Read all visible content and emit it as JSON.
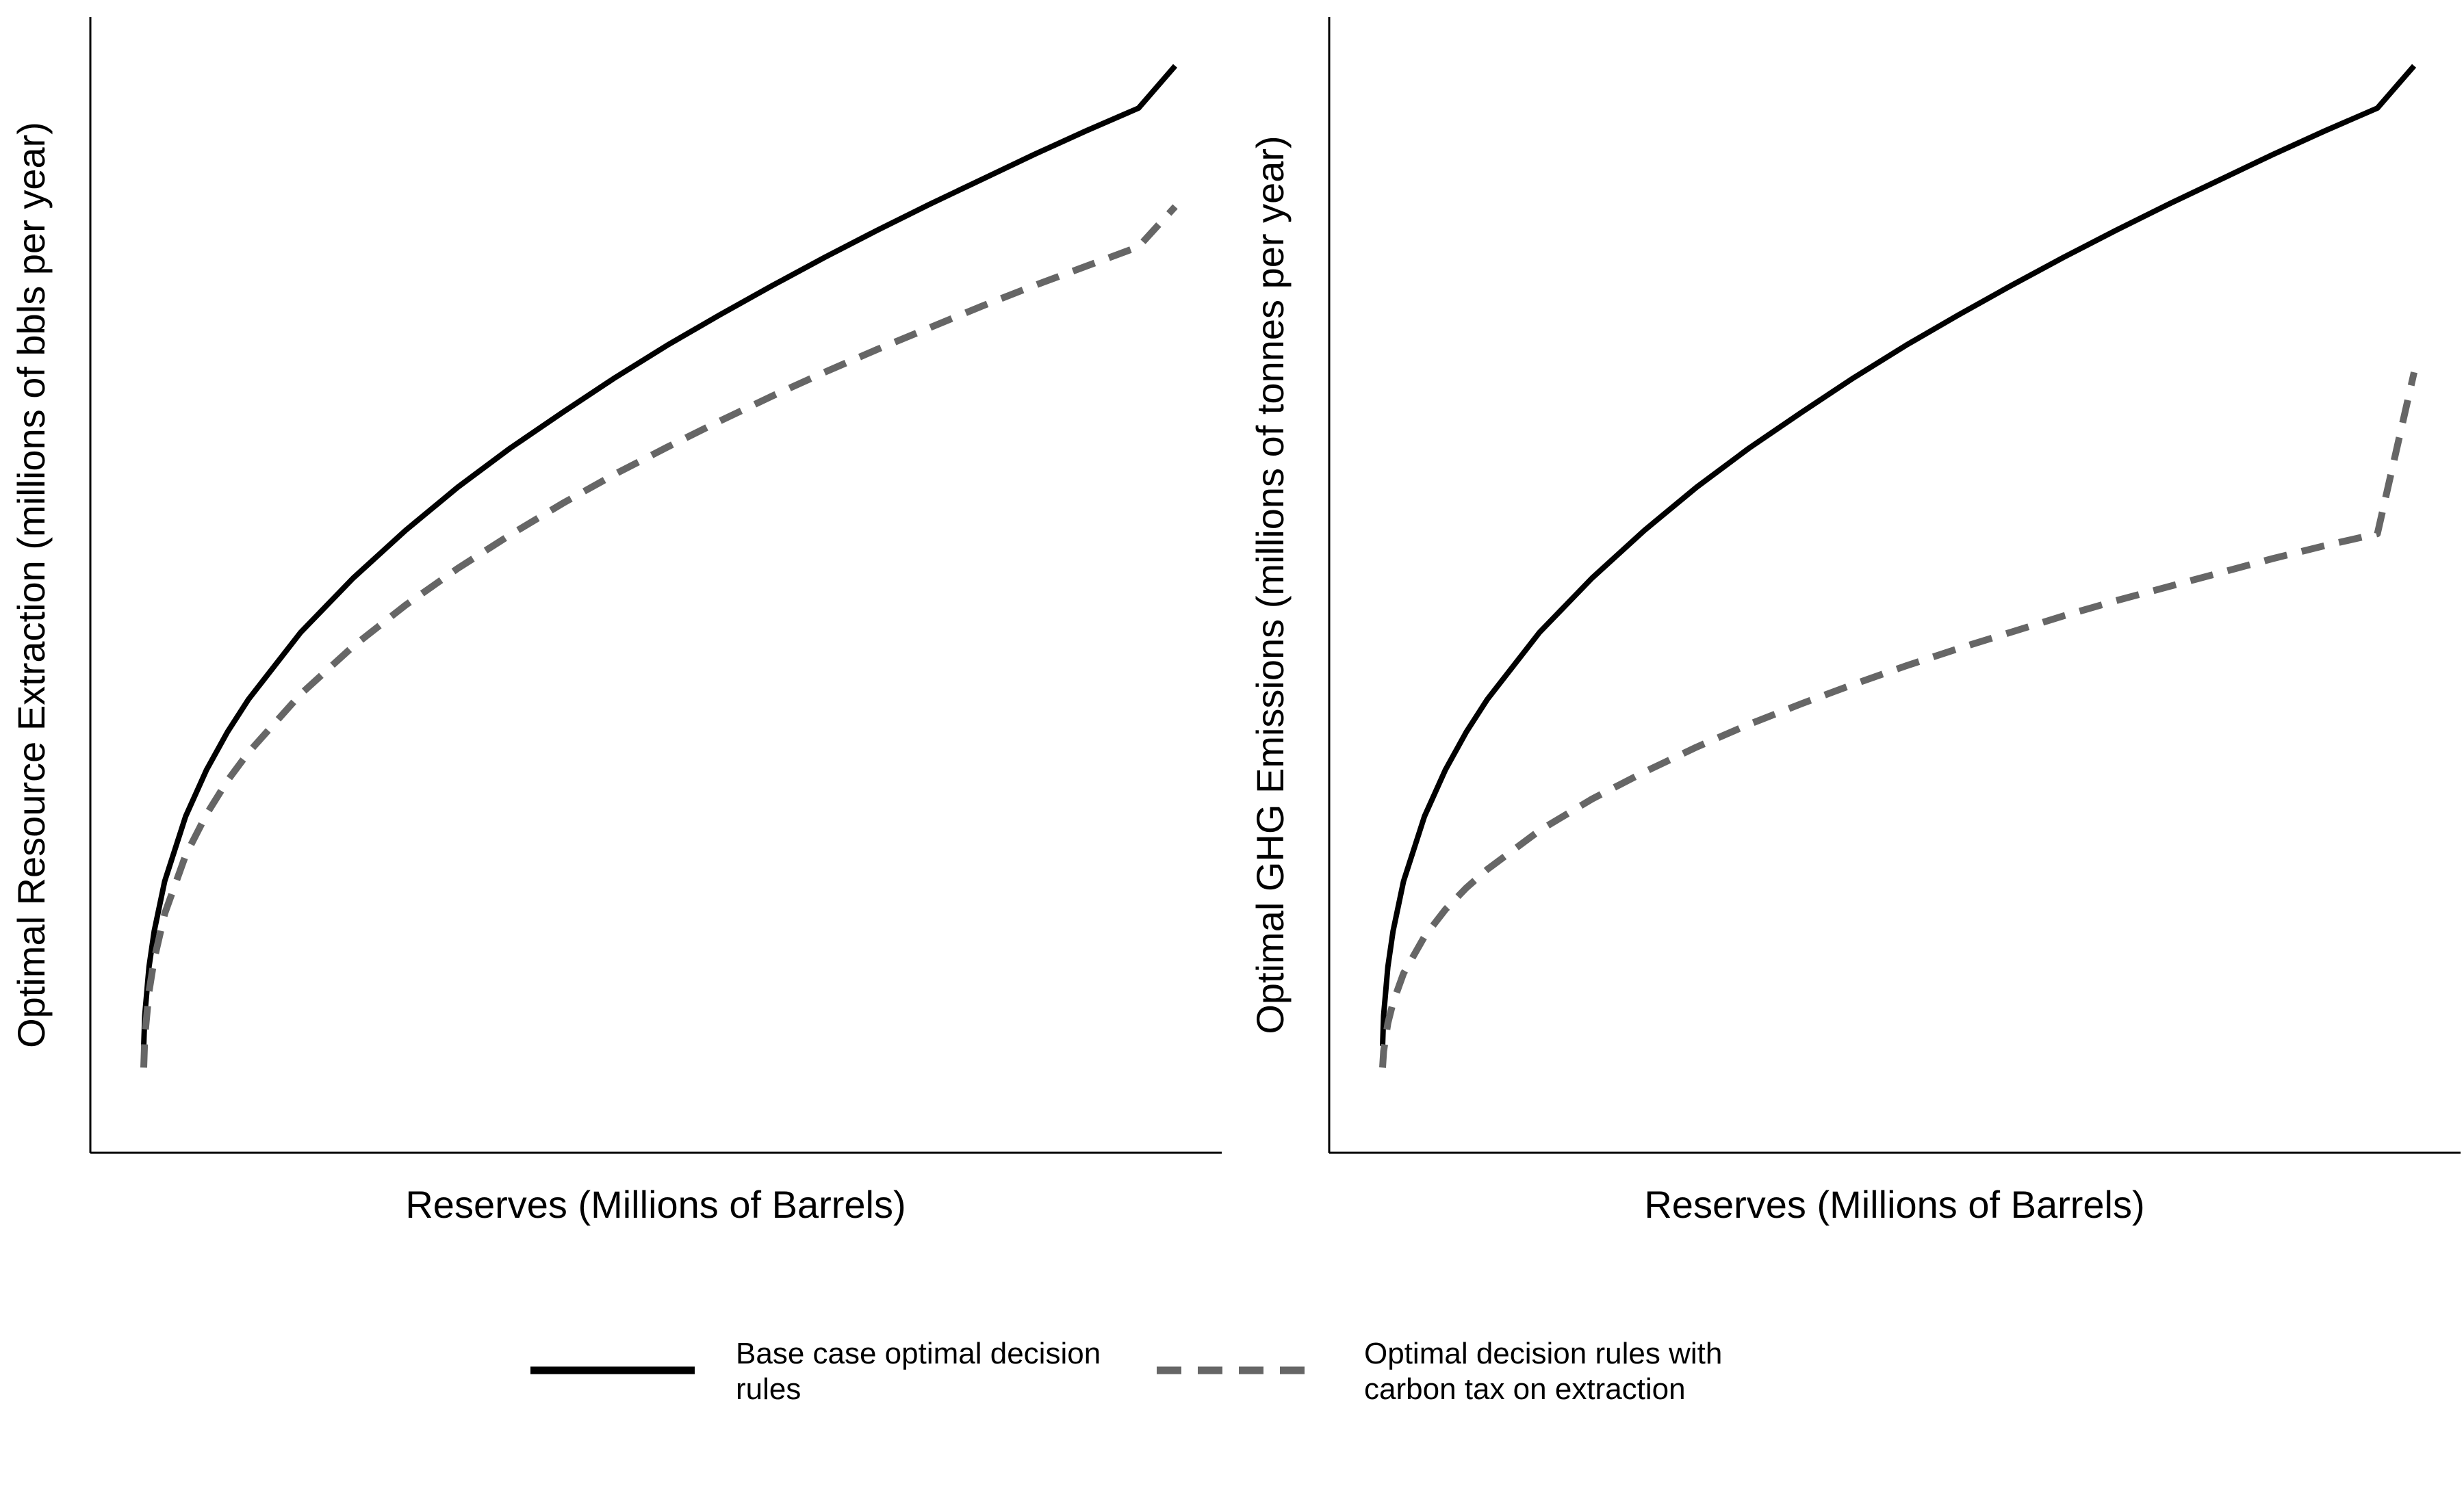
{
  "chart_data": [
    {
      "type": "line",
      "title": "",
      "xlabel": "Reserves (Millions of Barrels)",
      "ylabel": "Optimal Resource Extraction (millions of bbls per year)",
      "x_ticks": "none",
      "y_ticks": "none",
      "xlim": [
        0,
        1
      ],
      "ylim": [
        0,
        1
      ],
      "grid": false,
      "x": [
        0,
        0.001,
        0.005,
        0.01,
        0.02,
        0.04,
        0.06,
        0.08,
        0.1,
        0.15,
        0.2,
        0.25,
        0.3,
        0.35,
        0.4,
        0.45,
        0.5,
        0.55,
        0.6,
        0.65,
        0.7,
        0.75,
        0.8,
        0.85,
        0.9,
        0.95,
        0.985
      ],
      "series": [
        {
          "name": "Base case optimal decision rules",
          "color": "#000000",
          "style": "solid",
          "values": [
            0.05,
            0.078,
            0.123,
            0.156,
            0.202,
            0.262,
            0.305,
            0.34,
            0.37,
            0.432,
            0.482,
            0.526,
            0.566,
            0.602,
            0.635,
            0.667,
            0.697,
            0.725,
            0.752,
            0.778,
            0.803,
            0.827,
            0.85,
            0.873,
            0.895,
            0.916,
            0.955
          ]
        },
        {
          "name": "Optimal decision rules with carbon tax on extraction",
          "color": "#666666",
          "style": "dashed",
          "values": [
            0.03,
            0.058,
            0.1,
            0.13,
            0.172,
            0.226,
            0.264,
            0.295,
            0.321,
            0.375,
            0.419,
            0.457,
            0.491,
            0.522,
            0.551,
            0.578,
            0.603,
            0.627,
            0.65,
            0.672,
            0.693,
            0.713,
            0.733,
            0.752,
            0.77,
            0.788,
            0.825
          ]
        }
      ]
    },
    {
      "type": "line",
      "title": "",
      "xlabel": "Reserves (Millions of Barrels)",
      "ylabel": "Optimal GHG Emissions (millions of tonnes per year)",
      "x_ticks": "none",
      "y_ticks": "none",
      "xlim": [
        0,
        1
      ],
      "ylim": [
        0,
        1
      ],
      "grid": false,
      "x": [
        0,
        0.001,
        0.005,
        0.01,
        0.02,
        0.04,
        0.06,
        0.08,
        0.1,
        0.15,
        0.2,
        0.25,
        0.3,
        0.35,
        0.4,
        0.45,
        0.5,
        0.55,
        0.6,
        0.65,
        0.7,
        0.75,
        0.8,
        0.85,
        0.9,
        0.95,
        0.985
      ],
      "series": [
        {
          "name": "Base case optimal decision rules",
          "color": "#000000",
          "style": "solid",
          "values": [
            0.05,
            0.078,
            0.123,
            0.156,
            0.202,
            0.262,
            0.305,
            0.34,
            0.37,
            0.432,
            0.482,
            0.526,
            0.566,
            0.602,
            0.635,
            0.667,
            0.697,
            0.725,
            0.752,
            0.778,
            0.803,
            0.827,
            0.85,
            0.873,
            0.895,
            0.916,
            0.955
          ]
        },
        {
          "name": "Optimal decision rules with carbon tax on extraction",
          "color": "#666666",
          "style": "dashed",
          "values": [
            0.03,
            0.045,
            0.071,
            0.09,
            0.117,
            0.151,
            0.176,
            0.196,
            0.213,
            0.249,
            0.278,
            0.303,
            0.326,
            0.347,
            0.366,
            0.384,
            0.401,
            0.417,
            0.432,
            0.447,
            0.461,
            0.474,
            0.487,
            0.5,
            0.512,
            0.523,
            0.672
          ]
        }
      ]
    }
  ],
  "legend": {
    "placement": "bottom-center",
    "items": [
      {
        "label_line1": "Base case optimal decision",
        "label_line2": "rules",
        "color": "#000000",
        "style": "solid"
      },
      {
        "label_line1": "Optimal decision rules with",
        "label_line2": "carbon tax on extraction",
        "color": "#666666",
        "style": "dashed"
      }
    ]
  }
}
